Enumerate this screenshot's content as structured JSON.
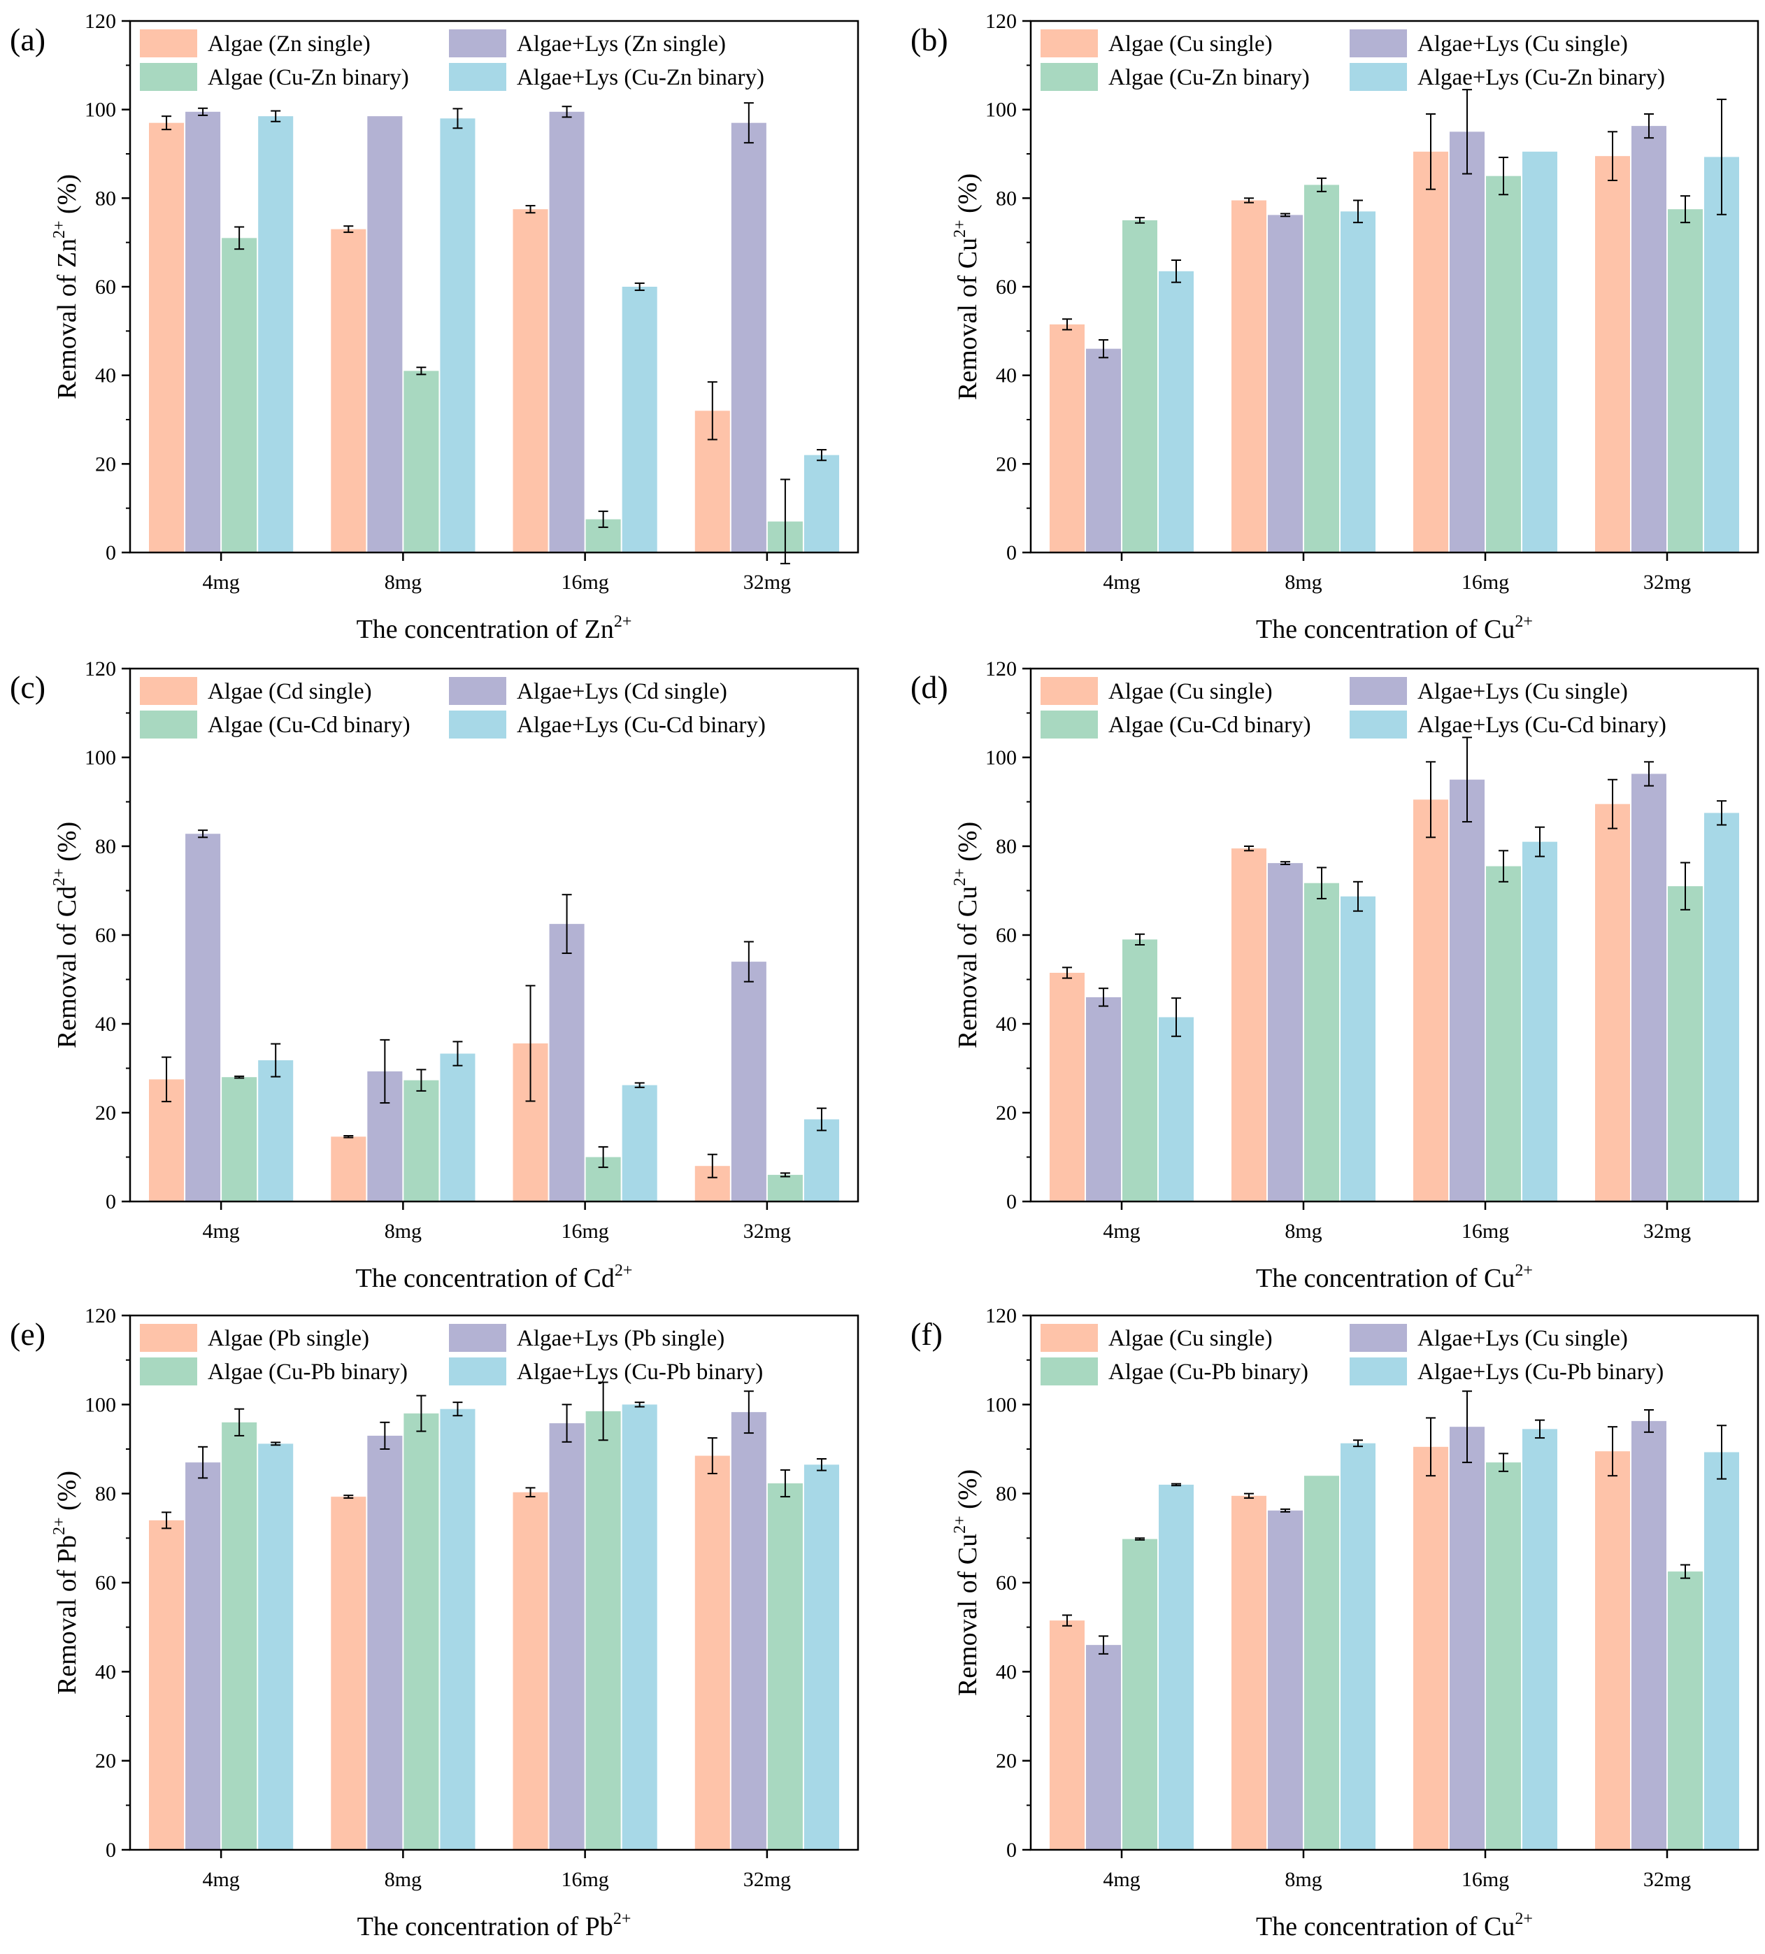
{
  "colors": {
    "algae_single": "#fec3a9",
    "algae_lys_single": "#b3b2d3",
    "algae_binary": "#a8d8c0",
    "algae_lys_binary": "#a7d8e7"
  },
  "chart_data": [
    {
      "type": "bar",
      "panel_label": "(a)",
      "categories": [
        "4mg",
        "8mg",
        "16mg",
        "32mg"
      ],
      "xlabel": {
        "base": "The concentration of Zn",
        "sup": "2+"
      },
      "ylabel": {
        "base": "Removal of Zn",
        "sup": "2+",
        "suffix": " (%)"
      },
      "ylim": [
        0,
        120
      ],
      "yticks": [
        "0",
        "20",
        "40",
        "60",
        "80",
        "100",
        "120"
      ],
      "series": [
        {
          "name": "Algae (Zn single)",
          "color_key": "algae_single",
          "values": [
            97,
            73,
            77.5,
            32
          ],
          "errors": [
            1.5,
            0.7,
            0.8,
            6.5
          ]
        },
        {
          "name": "Algae+Lys (Zn single)",
          "color_key": "algae_lys_single",
          "values": [
            99.5,
            98.5,
            99.5,
            97
          ],
          "errors": [
            0.8,
            0,
            1.2,
            4.5
          ]
        },
        {
          "name": "Algae (Cu-Zn binary)",
          "color_key": "algae_binary",
          "values": [
            71,
            41,
            7.5,
            7
          ],
          "errors": [
            2.5,
            0.8,
            1.8,
            9.5
          ]
        },
        {
          "name": "Algae+Lys (Cu-Zn binary)",
          "color_key": "algae_lys_binary",
          "values": [
            98.5,
            98,
            60,
            22
          ],
          "errors": [
            1.2,
            2.2,
            0.8,
            1.2
          ]
        }
      ]
    },
    {
      "type": "bar",
      "panel_label": "(b)",
      "categories": [
        "4mg",
        "8mg",
        "16mg",
        "32mg"
      ],
      "xlabel": {
        "base": "The concentration of Cu",
        "sup": "2+"
      },
      "ylabel": {
        "base": "Removal of Cu",
        "sup": "2+",
        "suffix": " (%)"
      },
      "ylim": [
        0,
        120
      ],
      "yticks": [
        "0",
        "20",
        "40",
        "60",
        "80",
        "100",
        "120"
      ],
      "series": [
        {
          "name": "Algae (Cu single)",
          "color_key": "algae_single",
          "values": [
            51.5,
            79.5,
            90.5,
            89.5
          ],
          "errors": [
            1.2,
            0.5,
            8.5,
            5.5
          ]
        },
        {
          "name": "Algae+Lys (Cu single)",
          "color_key": "algae_lys_single",
          "values": [
            46,
            76.2,
            95,
            96.3
          ],
          "errors": [
            2,
            0.3,
            9.5,
            2.7
          ]
        },
        {
          "name": "Algae (Cu-Zn binary)",
          "color_key": "algae_binary",
          "values": [
            75,
            83,
            85,
            77.5
          ],
          "errors": [
            0.6,
            1.5,
            4.2,
            3
          ]
        },
        {
          "name": "Algae+Lys (Cu-Zn binary)",
          "color_key": "algae_lys_binary",
          "values": [
            63.5,
            77,
            90.5,
            89.3
          ],
          "errors": [
            2.5,
            2.5,
            0,
            13
          ]
        }
      ]
    },
    {
      "type": "bar",
      "panel_label": "(c)",
      "categories": [
        "4mg",
        "8mg",
        "16mg",
        "32mg"
      ],
      "xlabel": {
        "base": "The concentration of Cd",
        "sup": "2+"
      },
      "ylabel": {
        "base": "Removal of Cd",
        "sup": "2+",
        "suffix": " (%)"
      },
      "ylim": [
        0,
        120
      ],
      "yticks": [
        "0",
        "20",
        "40",
        "60",
        "80",
        "100",
        "120"
      ],
      "series": [
        {
          "name": "Algae (Cd single)",
          "color_key": "algae_single",
          "values": [
            27.5,
            14.6,
            35.6,
            8
          ],
          "errors": [
            5,
            0.2,
            13,
            2.6
          ]
        },
        {
          "name": "Algae+Lys (Cd single)",
          "color_key": "algae_lys_single",
          "values": [
            82.8,
            29.3,
            62.5,
            54
          ],
          "errors": [
            0.8,
            7.1,
            6.6,
            4.5
          ]
        },
        {
          "name": "Algae (Cu-Cd binary)",
          "color_key": "algae_binary",
          "values": [
            28,
            27.3,
            10,
            6
          ],
          "errors": [
            0.2,
            2.4,
            2.3,
            0.4
          ]
        },
        {
          "name": "Algae+Lys (Cu-Cd binary)",
          "color_key": "algae_lys_binary",
          "values": [
            31.8,
            33.3,
            26.2,
            18.5
          ],
          "errors": [
            3.7,
            2.7,
            0.5,
            2.5
          ]
        }
      ]
    },
    {
      "type": "bar",
      "panel_label": "(d)",
      "categories": [
        "4mg",
        "8mg",
        "16mg",
        "32mg"
      ],
      "xlabel": {
        "base": "The concentration of Cu",
        "sup": "2+"
      },
      "ylabel": {
        "base": "Removal of Cu",
        "sup": "2+",
        "suffix": " (%)"
      },
      "ylim": [
        0,
        120
      ],
      "yticks": [
        "0",
        "20",
        "40",
        "60",
        "80",
        "100",
        "120"
      ],
      "series": [
        {
          "name": "Algae (Cu single)",
          "color_key": "algae_single",
          "values": [
            51.5,
            79.5,
            90.5,
            89.5
          ],
          "errors": [
            1.2,
            0.5,
            8.5,
            5.5
          ]
        },
        {
          "name": "Algae+Lys (Cu single)",
          "color_key": "algae_lys_single",
          "values": [
            46,
            76.2,
            95,
            96.3
          ],
          "errors": [
            2,
            0.3,
            9.5,
            2.7
          ]
        },
        {
          "name": "Algae (Cu-Cd binary)",
          "color_key": "algae_binary",
          "values": [
            59,
            71.7,
            75.5,
            71
          ],
          "errors": [
            1.2,
            3.5,
            3.5,
            5.3
          ]
        },
        {
          "name": "Algae+Lys (Cu-Cd binary)",
          "color_key": "algae_lys_binary",
          "values": [
            41.5,
            68.7,
            81,
            87.5
          ],
          "errors": [
            4.3,
            3.3,
            3.3,
            2.7
          ]
        }
      ]
    },
    {
      "type": "bar",
      "panel_label": "(e)",
      "categories": [
        "4mg",
        "8mg",
        "16mg",
        "32mg"
      ],
      "xlabel": {
        "base": "The concentration of Pb",
        "sup": "2+"
      },
      "ylabel": {
        "base": "Removal of Pb",
        "sup": "2+",
        "suffix": " (%)"
      },
      "ylim": [
        0,
        120
      ],
      "yticks": [
        "0",
        "20",
        "40",
        "60",
        "80",
        "100",
        "120"
      ],
      "series": [
        {
          "name": "Algae (Pb single)",
          "color_key": "algae_single",
          "values": [
            74,
            79.3,
            80.3,
            88.5
          ],
          "errors": [
            1.8,
            0.3,
            1,
            4
          ]
        },
        {
          "name": "Algae+Lys (Pb single)",
          "color_key": "algae_lys_single",
          "values": [
            87,
            93,
            95.8,
            98.3
          ],
          "errors": [
            3.5,
            3,
            4.2,
            4.7
          ]
        },
        {
          "name": "Algae (Cu-Pb binary)",
          "color_key": "algae_binary",
          "values": [
            96,
            98,
            98.5,
            82.3
          ],
          "errors": [
            3,
            4,
            6.5,
            3
          ]
        },
        {
          "name": "Algae+Lys (Cu-Pb binary)",
          "color_key": "algae_lys_binary",
          "values": [
            91.2,
            99,
            100,
            86.5
          ],
          "errors": [
            0.3,
            1.5,
            0.5,
            1.3
          ]
        }
      ]
    },
    {
      "type": "bar",
      "panel_label": "(f)",
      "categories": [
        "4mg",
        "8mg",
        "16mg",
        "32mg"
      ],
      "xlabel": {
        "base": "The concentration of Cu",
        "sup": "2+"
      },
      "ylabel": {
        "base": "Removal of Cu",
        "sup": "2+",
        "suffix": " (%)"
      },
      "ylim": [
        0,
        120
      ],
      "yticks": [
        "0",
        "20",
        "40",
        "60",
        "80",
        "100",
        "120"
      ],
      "series": [
        {
          "name": "Algae (Cu single)",
          "color_key": "algae_single",
          "values": [
            51.5,
            79.5,
            90.5,
            89.5
          ],
          "errors": [
            1.2,
            0.5,
            6.5,
            5.5
          ]
        },
        {
          "name": "Algae+Lys (Cu single)",
          "color_key": "algae_lys_single",
          "values": [
            46,
            76.2,
            95,
            96.3
          ],
          "errors": [
            2,
            0.3,
            8,
            2.5
          ]
        },
        {
          "name": "Algae (Cu-Pb binary)",
          "color_key": "algae_binary",
          "values": [
            69.8,
            84,
            87,
            62.5
          ],
          "errors": [
            0.2,
            0,
            2,
            1.5
          ]
        },
        {
          "name": "Algae+Lys (Cu-Pb binary)",
          "color_key": "algae_lys_binary",
          "values": [
            82,
            91.3,
            94.5,
            89.3
          ],
          "errors": [
            0.2,
            0.7,
            2,
            6
          ]
        }
      ]
    }
  ]
}
